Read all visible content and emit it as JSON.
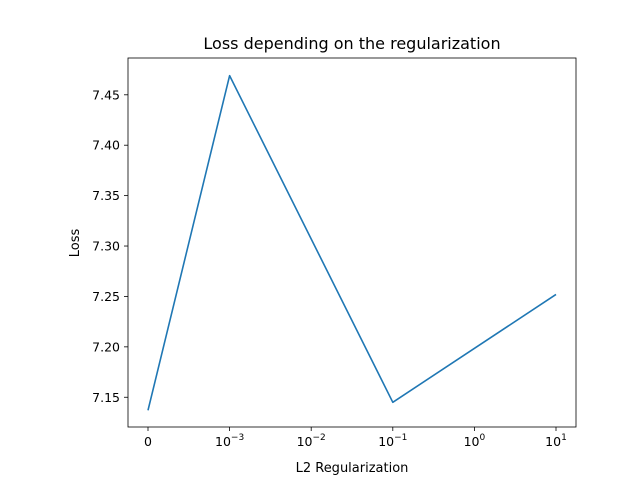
{
  "chart_data": {
    "type": "line",
    "title": "Loss depending on the regularization",
    "xlabel": "L2 Regularization",
    "ylabel": "Loss",
    "x_scale": "symlog",
    "x": [
      0,
      0.001,
      0.1,
      10
    ],
    "x_ticks": [
      {
        "base": "0",
        "exp": ""
      },
      {
        "base": "10",
        "exp": "−3"
      },
      {
        "base": "10",
        "exp": "−2"
      },
      {
        "base": "10",
        "exp": "−1"
      },
      {
        "base": "10",
        "exp": "0"
      },
      {
        "base": "10",
        "exp": "1"
      }
    ],
    "y_ticks": [
      "7.15",
      "7.20",
      "7.25",
      "7.30",
      "7.35",
      "7.40",
      "7.45"
    ],
    "ylim": [
      7.1205,
      7.4865
    ],
    "series": [
      {
        "color": "#1f77b4",
        "values": [
          7.137,
          7.469,
          7.145,
          7.252
        ]
      }
    ],
    "grid": false,
    "legend": "none"
  }
}
